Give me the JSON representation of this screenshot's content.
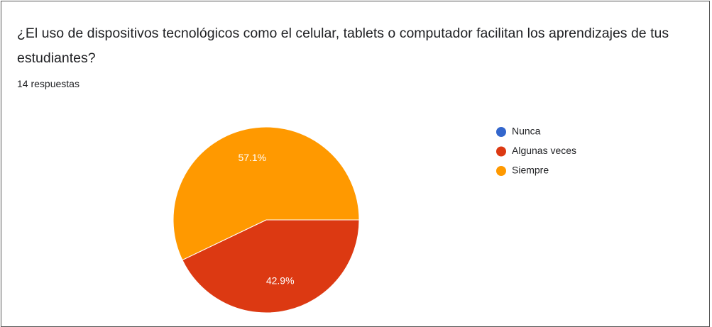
{
  "chart_data": {
    "type": "pie",
    "title": "¿El uso de dispositivos tecnológicos como el celular, tablets o computador facilitan los aprendizajes de tus estudiantes?",
    "subtitle": "14 respuestas",
    "categories": [
      "Nunca",
      "Algunas veces",
      "Siempre"
    ],
    "values": [
      0,
      42.9,
      57.1
    ],
    "value_labels": [
      null,
      "42.9%",
      "57.1%"
    ],
    "colors": [
      "#3366cc",
      "#dc3912",
      "#ff9900"
    ],
    "legend": "right"
  }
}
